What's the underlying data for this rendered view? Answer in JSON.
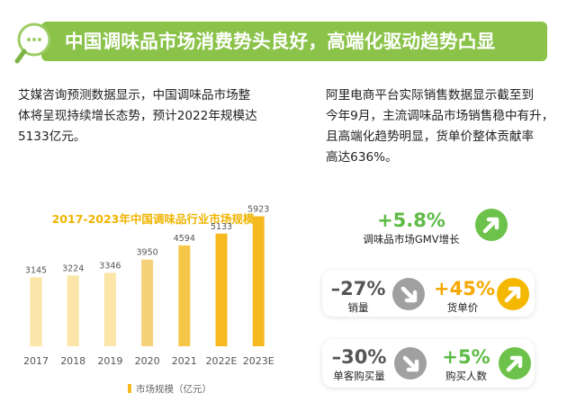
{
  "header": {
    "title": "中国调味品市场消费势头良好，高端化驱动趋势凸显"
  },
  "left_text": {
    "lines": [
      "艾媒咨询预测数据显示，中国调味品市场整",
      "体将呈现持续增长态势，预计2022年规模达",
      "5133亿元。"
    ]
  },
  "right_text": {
    "lines": [
      "阿里电商平台实际销售数据显示截至到",
      "今年9月，主流调味品市场销售稳中有升，",
      "且高端化趋势明显，货单价整体贡献率",
      "高达636%。"
    ]
  },
  "stats": {
    "gmv": {
      "value": "+5.8%",
      "label": "调味品市场GMV增长",
      "trend": "up"
    },
    "sales_volume": {
      "value": "–27%",
      "label": "销量",
      "trend": "down"
    },
    "unit_price": {
      "value": "+45%",
      "label": "货单价",
      "trend": "up"
    },
    "per_customer": {
      "value": "–30%",
      "label": "单客购买量",
      "trend": "down"
    },
    "buyers": {
      "value": "+5%",
      "label": "购买人数",
      "trend": "up"
    }
  },
  "colors": {
    "header_green": "#8bc34a",
    "bar_light": "#fbe5a8",
    "bar_dark": "#f7b920",
    "up_green": "#6cc24a",
    "up_orange": "#f5b800",
    "down_gray": "#a0a0a0"
  },
  "chart_data": {
    "type": "bar",
    "title": "2017-2023年中国调味品行业市场规模",
    "categories": [
      "2017",
      "2018",
      "2019",
      "2020",
      "2021",
      "2022E",
      "2023E"
    ],
    "series": [
      {
        "name": "市场规模（亿元）",
        "values": [
          3145,
          3224,
          3346,
          3950,
          4594,
          5133,
          5923
        ]
      }
    ],
    "value_labels": [
      "3145",
      "3224",
      "3346",
      "3950",
      "4594",
      "5133",
      "5923"
    ],
    "legend": "bottom-center",
    "grid": false
  }
}
